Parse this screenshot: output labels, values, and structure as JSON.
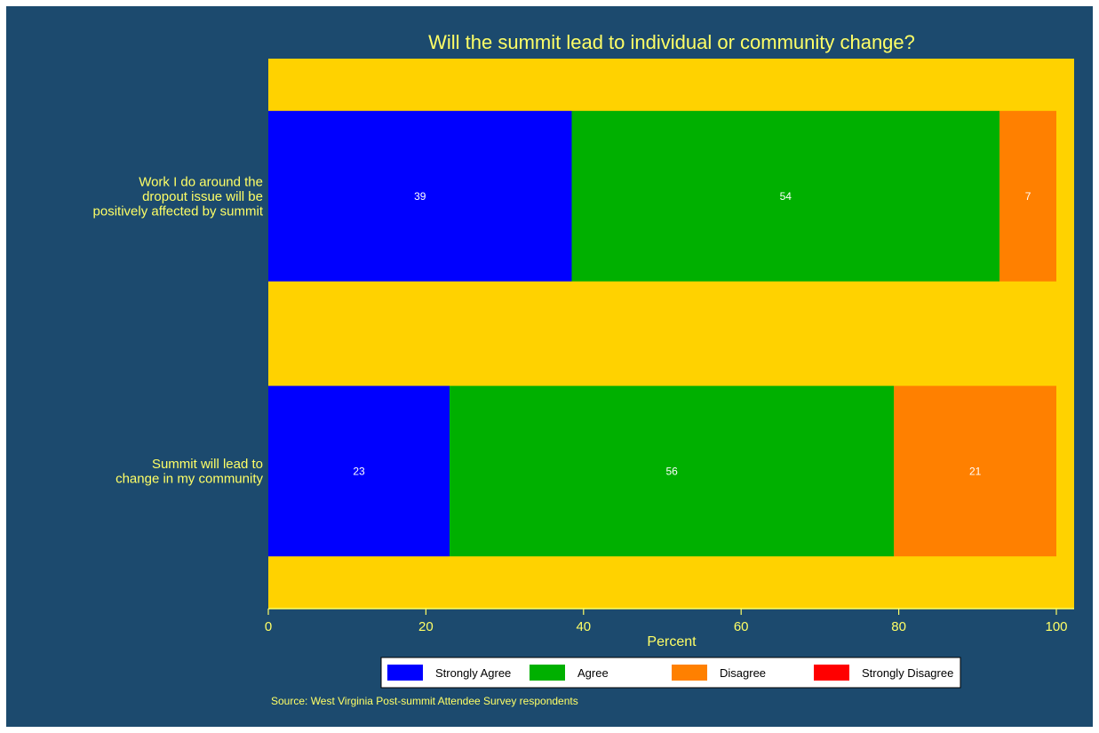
{
  "chart_data": {
    "type": "bar",
    "orientation": "horizontal",
    "stacked": true,
    "title": "Will the summit lead to individual or community change?",
    "xlabel": "Percent",
    "ylabel": "",
    "xlim": [
      0,
      100
    ],
    "xticks": [
      "0",
      "20",
      "40",
      "60",
      "80",
      "100"
    ],
    "categories": [
      [
        "Work I do around the",
        "dropout issue will be",
        "positively affected by summit"
      ],
      [
        "Summit will lead to",
        "change in my community"
      ]
    ],
    "series": [
      {
        "name": "Strongly Agree",
        "color": "#0000ff",
        "values": [
          38.5,
          23
        ],
        "labels": [
          "39",
          "23"
        ]
      },
      {
        "name": "Agree",
        "color": "#00b000",
        "values": [
          54.3,
          56.4
        ],
        "labels": [
          "54",
          "56"
        ]
      },
      {
        "name": "Disagree",
        "color": "#ff8000",
        "values": [
          7.2,
          20.6
        ],
        "labels": [
          "7",
          "21"
        ]
      },
      {
        "name": "Strongly Disagree",
        "color": "#ff0000",
        "values": [
          0,
          0
        ],
        "labels": [
          "",
          ""
        ]
      }
    ],
    "legend_position": "bottom",
    "note": "Source: West Virginia Post-summit Attendee Survey respondents",
    "colors": {
      "background": "#1c4a6e",
      "plot_area": "#ffd200",
      "text": "#ffff66",
      "data_label": "#ffffff",
      "legend_box": "#ffffff",
      "legend_text": "#000000"
    }
  }
}
